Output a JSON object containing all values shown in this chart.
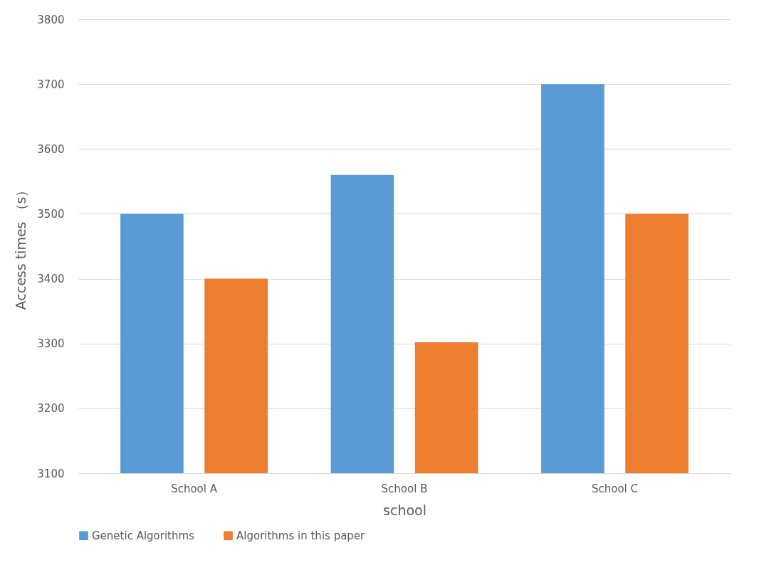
{
  "chart_data": {
    "type": "bar",
    "xlabel": "school",
    "ylabel": "Access times （s）",
    "categories": [
      "School A",
      "School B",
      "School C"
    ],
    "series": [
      {
        "name": "Genetic Algorithms",
        "color": "#5b9bd5",
        "values": [
          3500,
          3560,
          3700
        ]
      },
      {
        "name": "Algorithms in this paper",
        "color": "#ed7d31",
        "values": [
          3400,
          3302,
          3500
        ]
      }
    ],
    "ylim": [
      3100,
      3800
    ],
    "yticks": [
      3100,
      3200,
      3300,
      3400,
      3500,
      3600,
      3700,
      3800
    ],
    "grid": "y",
    "legend": "bottom"
  }
}
